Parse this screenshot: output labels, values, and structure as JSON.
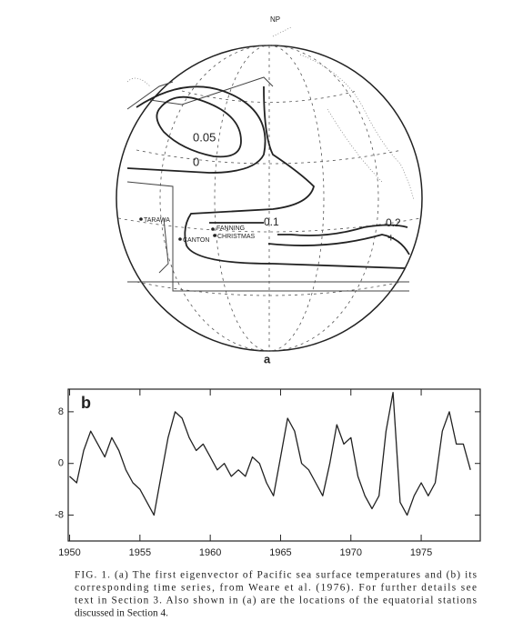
{
  "figure": {
    "map": {
      "panel_label": "a",
      "pole_label": "NP",
      "contour_labels": [
        "0.05",
        "0",
        "0.1",
        "0.2",
        "+"
      ],
      "stations": [
        "TARAWA",
        "CANTON",
        "FANNING",
        "CHRISTMAS"
      ]
    },
    "chart_data": {
      "type": "line",
      "panel_label": "b",
      "x": [
        1950.0,
        1950.5,
        1951.0,
        1951.5,
        1952.0,
        1952.5,
        1953.0,
        1953.5,
        1954.0,
        1954.5,
        1955.0,
        1955.5,
        1956.0,
        1956.5,
        1957.0,
        1957.5,
        1958.0,
        1958.5,
        1959.0,
        1959.5,
        1960.0,
        1960.5,
        1961.0,
        1961.5,
        1962.0,
        1962.5,
        1963.0,
        1963.5,
        1964.0,
        1964.5,
        1965.0,
        1965.5,
        1966.0,
        1966.5,
        1967.0,
        1967.5,
        1968.0,
        1968.5,
        1969.0,
        1969.5,
        1970.0,
        1970.5,
        1971.0,
        1971.5,
        1972.0,
        1972.5,
        1973.0,
        1973.5,
        1974.0,
        1974.5,
        1975.0,
        1975.5,
        1976.0,
        1976.5,
        1977.0,
        1977.5,
        1978.0,
        1978.5
      ],
      "series": [
        {
          "color": "#222222",
          "values": [
            -2,
            -3,
            2,
            5,
            3,
            1,
            4,
            2,
            -1,
            -3,
            -4,
            -6,
            -8,
            -2,
            4,
            8,
            7,
            4,
            2,
            3,
            1,
            -1,
            0,
            -2,
            -1,
            -2,
            1,
            0,
            -3,
            -5,
            1,
            7,
            5,
            0,
            -1,
            -3,
            -5,
            0,
            6,
            3,
            4,
            -2,
            -5,
            -7,
            -5,
            5,
            11,
            -6,
            -8,
            -5,
            -3,
            -5,
            -3,
            5,
            8,
            3,
            3,
            -1
          ]
        }
      ],
      "xlim": [
        1949.9,
        1979.2
      ],
      "ylim": [
        -12,
        11.5
      ],
      "xticks": [
        1950,
        1955,
        1960,
        1965,
        1970,
        1975
      ],
      "yticks": [
        8,
        0,
        -8
      ]
    },
    "caption": [
      "FIG. 1. (a) The first eigenvector of Pacific sea surface temperatures and (b) its",
      "corresponding time series, from Weare et al. (1976). For further details see",
      "text in Section 3. Also shown in (a) are the locations of the equatorial stations",
      "discussed in Section 4."
    ]
  }
}
